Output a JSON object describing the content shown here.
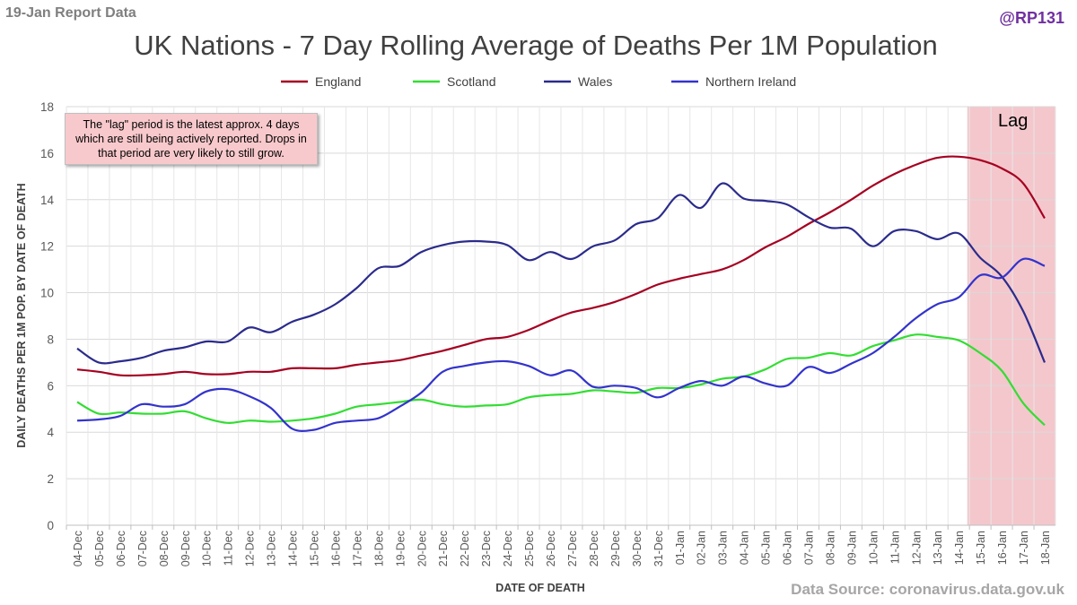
{
  "header": {
    "report_label": "19-Jan Report Data",
    "handle": "@RP131"
  },
  "footer": {
    "source": "Data Source: coronavirus.data.gov.uk"
  },
  "annotations": {
    "lag_note": "The \"lag\" period is the latest approx. 4 days which are still being actively reported. Drops in that period are very likely to still grow.",
    "lag_label": "Lag"
  },
  "chart_data": {
    "type": "line",
    "title": "UK Nations - 7 Day Rolling Average of Deaths Per 1M Population",
    "xlabel": "DATE OF DEATH",
    "ylabel": "DAILY DEATHS PER 1M POP. BY DATE OF DEATH",
    "ylim": [
      0,
      18
    ],
    "yticks": [
      0,
      2,
      4,
      6,
      8,
      10,
      12,
      14,
      16,
      18
    ],
    "grid": true,
    "legend_position": "top",
    "lag_shading": {
      "from": "14-Jan",
      "to": "18-Jan",
      "color": "#f4c7cc"
    },
    "categories": [
      "04-Dec",
      "05-Dec",
      "06-Dec",
      "07-Dec",
      "08-Dec",
      "09-Dec",
      "10-Dec",
      "11-Dec",
      "12-Dec",
      "13-Dec",
      "14-Dec",
      "15-Dec",
      "16-Dec",
      "17-Dec",
      "18-Dec",
      "19-Dec",
      "20-Dec",
      "21-Dec",
      "22-Dec",
      "23-Dec",
      "24-Dec",
      "25-Dec",
      "26-Dec",
      "27-Dec",
      "28-Dec",
      "29-Dec",
      "30-Dec",
      "31-Dec",
      "01-Jan",
      "02-Jan",
      "03-Jan",
      "04-Jan",
      "05-Jan",
      "06-Jan",
      "07-Jan",
      "08-Jan",
      "09-Jan",
      "10-Jan",
      "11-Jan",
      "12-Jan",
      "13-Jan",
      "14-Jan",
      "15-Jan",
      "16-Jan",
      "17-Jan",
      "18-Jan"
    ],
    "series": [
      {
        "name": "England",
        "color": "#a50021",
        "values": [
          6.7,
          6.6,
          6.45,
          6.45,
          6.5,
          6.6,
          6.5,
          6.5,
          6.6,
          6.6,
          6.75,
          6.75,
          6.75,
          6.9,
          7.0,
          7.1,
          7.3,
          7.5,
          7.75,
          8.0,
          8.1,
          8.4,
          8.8,
          9.15,
          9.35,
          9.6,
          9.95,
          10.35,
          10.6,
          10.8,
          11.0,
          11.4,
          11.95,
          12.4,
          12.95,
          13.45,
          14.0,
          14.6,
          15.1,
          15.5,
          15.8,
          15.85,
          15.7,
          15.35,
          14.7,
          13.2
        ]
      },
      {
        "name": "Scotland",
        "color": "#33dd33",
        "values": [
          5.3,
          4.8,
          4.85,
          4.8,
          4.8,
          4.9,
          4.6,
          4.4,
          4.5,
          4.45,
          4.5,
          4.6,
          4.8,
          5.1,
          5.2,
          5.3,
          5.4,
          5.2,
          5.1,
          5.15,
          5.2,
          5.5,
          5.6,
          5.65,
          5.8,
          5.75,
          5.7,
          5.9,
          5.9,
          6.05,
          6.3,
          6.4,
          6.7,
          7.15,
          7.2,
          7.4,
          7.3,
          7.7,
          7.95,
          8.2,
          8.1,
          7.95,
          7.4,
          6.65,
          5.25,
          4.3
        ]
      },
      {
        "name": "Wales",
        "color": "#2b2b8c",
        "values": [
          7.6,
          7.0,
          7.05,
          7.2,
          7.5,
          7.65,
          7.9,
          7.9,
          8.5,
          8.3,
          8.75,
          9.05,
          9.5,
          10.2,
          11.05,
          11.15,
          11.75,
          12.05,
          12.2,
          12.2,
          12.05,
          11.4,
          11.75,
          11.45,
          12.0,
          12.25,
          12.95,
          13.2,
          14.2,
          13.65,
          14.7,
          14.05,
          13.95,
          13.8,
          13.25,
          12.8,
          12.75,
          12.0,
          12.65,
          12.65,
          12.3,
          12.55,
          11.5,
          10.7,
          9.2,
          7.0
        ]
      },
      {
        "name": "Northern Ireland",
        "color": "#3333cc",
        "values": [
          4.5,
          4.55,
          4.7,
          5.2,
          5.1,
          5.2,
          5.75,
          5.85,
          5.55,
          5.05,
          4.15,
          4.1,
          4.4,
          4.5,
          4.6,
          5.1,
          5.7,
          6.6,
          6.85,
          7.0,
          7.05,
          6.85,
          6.45,
          6.65,
          5.95,
          6.0,
          5.9,
          5.5,
          5.9,
          6.2,
          6.0,
          6.4,
          6.1,
          6.0,
          6.8,
          6.55,
          6.95,
          7.4,
          8.1,
          8.9,
          9.5,
          9.8,
          10.75,
          10.65,
          11.45,
          11.15
        ]
      }
    ]
  }
}
